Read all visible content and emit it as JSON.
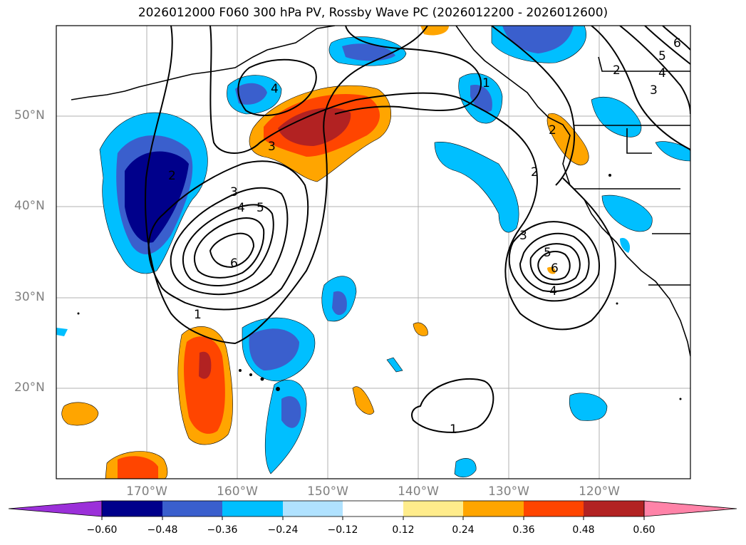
{
  "title": "2026012000 F060 300 hPa PV, Rossby Wave PC (2026012200 - 2026012600)",
  "lat_labels": [
    "50°N",
    "40°N",
    "30°N",
    "20°N"
  ],
  "lon_labels": [
    "170°W",
    "160°W",
    "150°W",
    "140°W",
    "130°W",
    "120°W"
  ],
  "colorbar": {
    "ticks": [
      "−0.60",
      "−0.48",
      "−0.36",
      "−0.24",
      "−0.12",
      "0.12",
      "0.24",
      "0.36",
      "0.48",
      "0.60"
    ],
    "colors": [
      "#9b30d9",
      "#00008b",
      "#3a5fcd",
      "#00bfff",
      "#b0e2ff",
      "#ffffff",
      "#ffec8b",
      "#ffa500",
      "#ff4500",
      "#b22222",
      "#ff83a8"
    ]
  },
  "contour_labels": [
    "1",
    "2",
    "3",
    "4",
    "5",
    "6",
    "1",
    "2",
    "3",
    "4",
    "5",
    "6",
    "1",
    "2",
    "3",
    "4",
    "5",
    "6",
    "2",
    "3",
    "4"
  ]
}
